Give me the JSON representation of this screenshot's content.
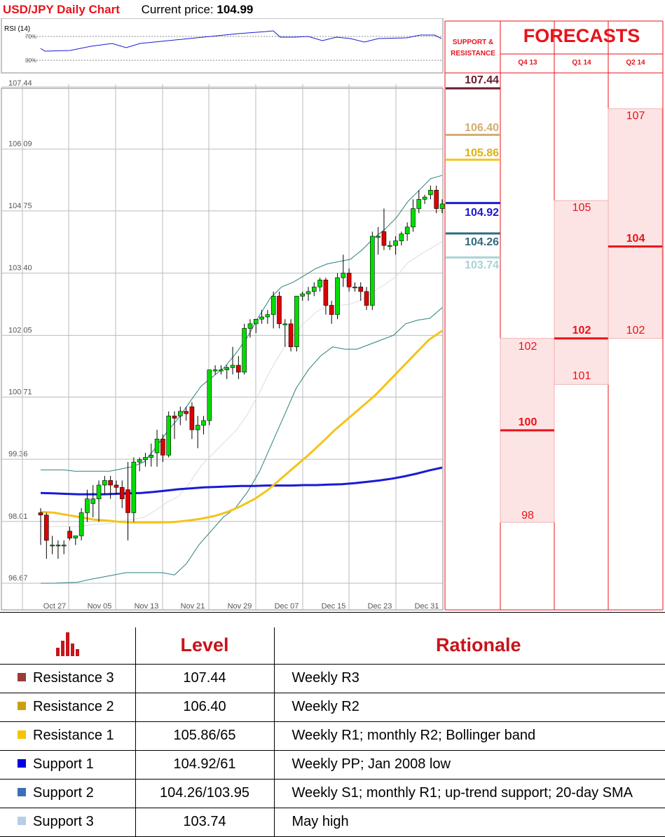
{
  "header": {
    "title": "USD/JPY Daily Chart",
    "price_label": "Current price:",
    "price_value": "104.99"
  },
  "rsi": {
    "label": "RSI (14)",
    "upper_label": "70%",
    "lower_label": "30%"
  },
  "colors": {
    "red": "#e8131b",
    "resistance3": "#6b1a2d",
    "resistance2": "#d2ad6f",
    "resistance1": "#f5c31a",
    "support1": "#1a1ad6",
    "support2": "#2f6b7f",
    "support3": "#a8d3d6",
    "candle_up": "#00dd00",
    "candle_down": "#dd0000",
    "bollinger": "#2a7f7f",
    "sma_yellow": "#f5c31a",
    "sma_blue": "#1a1ad6",
    "forecast_fill": "#fde4e4"
  },
  "sr_panel": {
    "title_line1": "SUPPORT &",
    "title_line2": "RESISTANCE",
    "levels": [
      {
        "name": "resistance3",
        "value": 107.44,
        "label": "107.44"
      },
      {
        "name": "resistance2",
        "value": 106.4,
        "label": "106.40"
      },
      {
        "name": "resistance1",
        "value": 105.86,
        "label": "105.86"
      },
      {
        "name": "support1",
        "value": 104.92,
        "label": "104.92"
      },
      {
        "name": "support2",
        "value": 104.26,
        "label": "104.26"
      },
      {
        "name": "support3",
        "value": 103.74,
        "label": "103.74"
      }
    ]
  },
  "forecasts": {
    "title": "FORECASTS",
    "periods": [
      {
        "label": "Q4 13",
        "high": "102",
        "mid": "100",
        "low": "98"
      },
      {
        "label": "Q1 14",
        "high": "105",
        "mid": "102",
        "low": "101"
      },
      {
        "label": "Q2 14",
        "high": "107",
        "mid": "104",
        "low": "102"
      }
    ]
  },
  "chart_data": {
    "type": "candlestick",
    "title": "USD/JPY Daily Chart",
    "y_ticks": [
      "107.44",
      "106.09",
      "104.75",
      "103.40",
      "102.05",
      "100.71",
      "99.36",
      "98.01",
      "96.67"
    ],
    "ylim": [
      96.67,
      107.44
    ],
    "x_ticks": [
      "Oct 27",
      "Nov 05",
      "Nov 13",
      "Nov 21",
      "Nov 29",
      "Dec 07",
      "Dec 15",
      "Dec 23",
      "Dec 31"
    ],
    "grid": true,
    "candles": [
      {
        "o": 98.2,
        "h": 98.3,
        "l": 97.5,
        "c": 98.15
      },
      {
        "o": 98.15,
        "h": 98.2,
        "l": 97.2,
        "c": 97.6
      },
      {
        "o": 97.5,
        "h": 97.7,
        "l": 97.3,
        "c": 97.5
      },
      {
        "o": 97.5,
        "h": 97.6,
        "l": 97.2,
        "c": 97.5
      },
      {
        "o": 97.5,
        "h": 97.6,
        "l": 97.3,
        "c": 97.5
      },
      {
        "o": 97.8,
        "h": 97.9,
        "l": 97.6,
        "c": 97.65
      },
      {
        "o": 97.65,
        "h": 97.7,
        "l": 97.5,
        "c": 97.7
      },
      {
        "o": 97.7,
        "h": 98.3,
        "l": 97.6,
        "c": 98.2
      },
      {
        "o": 98.2,
        "h": 98.7,
        "l": 98.0,
        "c": 98.5
      },
      {
        "o": 98.4,
        "h": 98.8,
        "l": 98.1,
        "c": 98.5
      },
      {
        "o": 98.5,
        "h": 98.9,
        "l": 98.0,
        "c": 98.8
      },
      {
        "o": 98.8,
        "h": 99.0,
        "l": 98.6,
        "c": 98.9
      },
      {
        "o": 98.9,
        "h": 99.0,
        "l": 98.5,
        "c": 98.8
      },
      {
        "o": 98.8,
        "h": 98.9,
        "l": 98.6,
        "c": 98.75
      },
      {
        "o": 98.75,
        "h": 98.9,
        "l": 98.3,
        "c": 98.5
      },
      {
        "o": 98.7,
        "h": 99.3,
        "l": 97.6,
        "c": 98.2
      },
      {
        "o": 98.2,
        "h": 99.4,
        "l": 98.0,
        "c": 99.3
      },
      {
        "o": 99.3,
        "h": 99.4,
        "l": 99.1,
        "c": 99.35
      },
      {
        "o": 99.35,
        "h": 99.5,
        "l": 99.2,
        "c": 99.4
      },
      {
        "o": 99.4,
        "h": 99.7,
        "l": 99.2,
        "c": 99.45
      },
      {
        "o": 99.5,
        "h": 100.0,
        "l": 99.2,
        "c": 99.8
      },
      {
        "o": 99.8,
        "h": 99.9,
        "l": 99.3,
        "c": 99.45
      },
      {
        "o": 99.45,
        "h": 100.4,
        "l": 99.4,
        "c": 100.3
      },
      {
        "o": 100.3,
        "h": 100.4,
        "l": 99.8,
        "c": 100.25
      },
      {
        "o": 100.3,
        "h": 100.5,
        "l": 100.1,
        "c": 100.4
      },
      {
        "o": 100.4,
        "h": 100.5,
        "l": 100.2,
        "c": 100.35
      },
      {
        "o": 100.5,
        "h": 100.6,
        "l": 99.8,
        "c": 100.0
      },
      {
        "o": 100.0,
        "h": 100.3,
        "l": 99.6,
        "c": 100.1
      },
      {
        "o": 100.1,
        "h": 100.3,
        "l": 99.9,
        "c": 100.2
      },
      {
        "o": 100.2,
        "h": 101.3,
        "l": 100.1,
        "c": 101.3
      },
      {
        "o": 101.3,
        "h": 101.4,
        "l": 101.2,
        "c": 101.3
      },
      {
        "o": 101.3,
        "h": 101.4,
        "l": 101.2,
        "c": 101.3
      },
      {
        "o": 101.3,
        "h": 101.4,
        "l": 101.1,
        "c": 101.35
      },
      {
        "o": 101.35,
        "h": 101.8,
        "l": 101.2,
        "c": 101.4
      },
      {
        "o": 101.4,
        "h": 101.6,
        "l": 101.1,
        "c": 101.25
      },
      {
        "o": 101.25,
        "h": 102.3,
        "l": 101.2,
        "c": 102.2
      },
      {
        "o": 102.2,
        "h": 102.4,
        "l": 102.0,
        "c": 102.3
      },
      {
        "o": 102.3,
        "h": 102.4,
        "l": 102.1,
        "c": 102.4
      },
      {
        "o": 102.4,
        "h": 102.6,
        "l": 102.3,
        "c": 102.45
      },
      {
        "o": 102.45,
        "h": 102.6,
        "l": 102.3,
        "c": 102.5
      },
      {
        "o": 102.5,
        "h": 103.0,
        "l": 102.2,
        "c": 102.9
      },
      {
        "o": 102.9,
        "h": 103.0,
        "l": 102.2,
        "c": 102.3
      },
      {
        "o": 102.3,
        "h": 102.4,
        "l": 101.8,
        "c": 102.3
      },
      {
        "o": 102.3,
        "h": 102.4,
        "l": 101.7,
        "c": 101.8
      },
      {
        "o": 101.8,
        "h": 102.9,
        "l": 101.7,
        "c": 102.9
      },
      {
        "o": 102.9,
        "h": 103.0,
        "l": 102.8,
        "c": 102.95
      },
      {
        "o": 102.95,
        "h": 103.1,
        "l": 102.8,
        "c": 103.0
      },
      {
        "o": 103.0,
        "h": 103.2,
        "l": 102.9,
        "c": 103.1
      },
      {
        "o": 103.1,
        "h": 103.3,
        "l": 103.0,
        "c": 103.25
      },
      {
        "o": 103.25,
        "h": 103.3,
        "l": 102.5,
        "c": 102.7
      },
      {
        "o": 102.7,
        "h": 102.8,
        "l": 102.3,
        "c": 102.5
      },
      {
        "o": 102.5,
        "h": 103.4,
        "l": 102.4,
        "c": 103.3
      },
      {
        "o": 103.3,
        "h": 103.8,
        "l": 103.1,
        "c": 103.4
      },
      {
        "o": 103.4,
        "h": 103.5,
        "l": 103.0,
        "c": 103.1
      },
      {
        "o": 103.1,
        "h": 103.2,
        "l": 103.0,
        "c": 103.1
      },
      {
        "o": 103.1,
        "h": 103.2,
        "l": 102.8,
        "c": 103.0
      },
      {
        "o": 103.0,
        "h": 103.1,
        "l": 102.6,
        "c": 102.7
      },
      {
        "o": 102.7,
        "h": 104.3,
        "l": 102.6,
        "c": 104.2
      },
      {
        "o": 104.2,
        "h": 104.4,
        "l": 103.8,
        "c": 104.2
      },
      {
        "o": 104.3,
        "h": 104.8,
        "l": 103.9,
        "c": 104.0
      },
      {
        "o": 104.0,
        "h": 104.1,
        "l": 103.9,
        "c": 104.0
      },
      {
        "o": 104.0,
        "h": 104.2,
        "l": 103.8,
        "c": 104.1
      },
      {
        "o": 104.1,
        "h": 104.3,
        "l": 104.0,
        "c": 104.25
      },
      {
        "o": 104.25,
        "h": 104.5,
        "l": 104.1,
        "c": 104.4
      },
      {
        "o": 104.4,
        "h": 105.0,
        "l": 104.3,
        "c": 104.8
      },
      {
        "o": 104.8,
        "h": 105.2,
        "l": 104.7,
        "c": 105.0
      },
      {
        "o": 105.0,
        "h": 105.1,
        "l": 104.9,
        "c": 105.05
      },
      {
        "o": 105.1,
        "h": 105.3,
        "l": 105.0,
        "c": 105.2
      },
      {
        "o": 105.2,
        "h": 105.3,
        "l": 104.7,
        "c": 104.8
      },
      {
        "o": 104.8,
        "h": 105.0,
        "l": 104.7,
        "c": 104.9
      }
    ],
    "sma_yellow": [
      98.22,
      98.2,
      98.15,
      98.1,
      98.05,
      98.03,
      98.0,
      97.99,
      97.99,
      97.99,
      98.0,
      98.03,
      98.07,
      98.13,
      98.22,
      98.35,
      98.5,
      98.7,
      98.95,
      99.2,
      99.45,
      99.72,
      100.0,
      100.25,
      100.5,
      100.75,
      101.05,
      101.35,
      101.65,
      101.95,
      102.15
    ],
    "sma_blue": [
      98.63,
      98.62,
      98.61,
      98.6,
      98.6,
      98.6,
      98.61,
      98.62,
      98.63,
      98.65,
      98.68,
      98.71,
      98.73,
      98.75,
      98.76,
      98.77,
      98.78,
      98.78,
      98.79,
      98.79,
      98.79,
      98.8,
      98.8,
      98.81,
      98.82,
      98.84,
      98.87,
      98.9,
      98.94,
      98.99,
      99.05,
      99.12,
      99.18
    ],
    "bollinger_upper": [
      99.13,
      99.13,
      99.13,
      99.1,
      99.1,
      99.1,
      99.1,
      99.15,
      99.2,
      99.3,
      99.6,
      99.95,
      100.25,
      100.6,
      100.95,
      101.15,
      101.35,
      101.65,
      102.0,
      102.45,
      102.85,
      103.1,
      103.2,
      103.35,
      103.5,
      103.6,
      103.65,
      103.7,
      103.9,
      104.15,
      104.35,
      104.6,
      104.95,
      105.2,
      105.45,
      105.52
    ],
    "bollinger_lower": [
      96.67,
      96.67,
      96.68,
      96.69,
      96.75,
      96.8,
      96.85,
      96.9,
      96.9,
      96.9,
      96.9,
      96.85,
      97.1,
      97.5,
      97.8,
      98.1,
      98.3,
      98.65,
      99.1,
      99.7,
      100.3,
      100.9,
      101.3,
      101.6,
      101.8,
      101.75,
      101.75,
      101.85,
      101.95,
      102.05,
      102.3,
      102.38,
      102.42,
      102.65
    ]
  },
  "table": {
    "header_level": "Level",
    "header_rationale": "Rationale",
    "rows": [
      {
        "name": "Resistance 3",
        "level": "107.44",
        "rationale": "Weekly R3",
        "color": "#9b3a3a"
      },
      {
        "name": "Resistance 2",
        "level": "106.40",
        "rationale": "Weekly R2",
        "color": "#c8a014"
      },
      {
        "name": "Resistance 1",
        "level": "105.86/65",
        "rationale": "Weekly R1; monthly R2; Bollinger band",
        "color": "#f5c400"
      },
      {
        "name": "Support 1",
        "level": "104.92/61",
        "rationale": "Weekly PP; Jan 2008 low",
        "color": "#0000e0"
      },
      {
        "name": "Support 2",
        "level": "104.26/103.95",
        "rationale": "Weekly S1; monthly R1; up-trend support; 20-day SMA",
        "color": "#3a70b8"
      },
      {
        "name": "Support 3",
        "level": "103.74",
        "rationale": "May high",
        "color": "#b8cde8"
      }
    ]
  }
}
